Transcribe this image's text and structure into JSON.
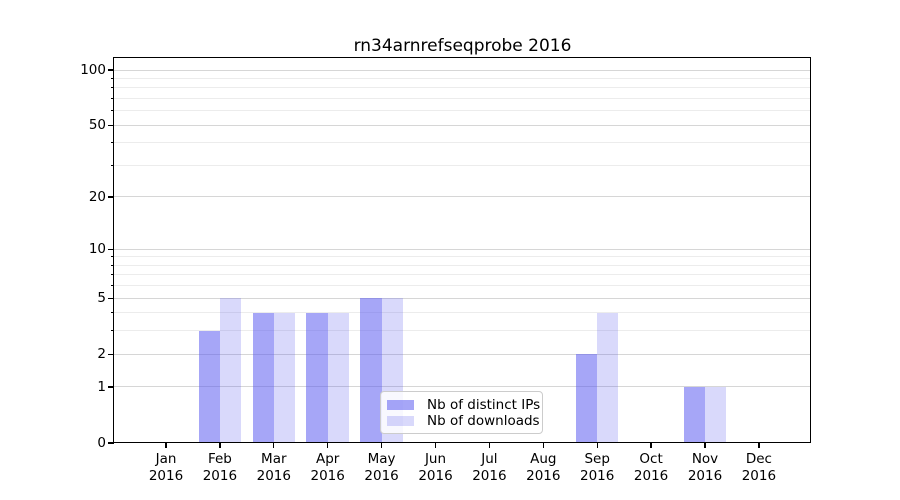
{
  "title": "rn34arnrefseqprobe 2016",
  "chart_data": {
    "type": "bar",
    "title": "rn34arnrefseqprobe 2016",
    "categories": [
      "Jan",
      "Feb",
      "Mar",
      "Apr",
      "May",
      "Jun",
      "Jul",
      "Aug",
      "Sep",
      "Oct",
      "Nov",
      "Dec"
    ],
    "year": "2016",
    "series": [
      {
        "name": "Nb of distinct IPs",
        "color": "#5c5cf0",
        "alpha": 0.55,
        "rendered_color": "#a6a6f3",
        "values": [
          0,
          3,
          4,
          4,
          5,
          0,
          0,
          0,
          2,
          0,
          1,
          0
        ]
      },
      {
        "name": "Nb of downloads",
        "color": "#5c5cf0",
        "alpha": 0.235,
        "rendered_color": "#d9d9f8",
        "values": [
          0,
          5,
          4,
          4,
          5,
          0,
          0,
          0,
          4,
          0,
          1,
          0
        ]
      }
    ],
    "yscale": "log1p",
    "yticks": [
      0,
      1,
      2,
      5,
      10,
      20,
      50,
      100
    ],
    "minor_yticks": [
      3,
      4,
      6,
      7,
      8,
      9,
      30,
      40,
      60,
      70,
      80,
      90
    ],
    "ylim": [
      0,
      116
    ],
    "xlabel": "",
    "ylabel": "",
    "grid": "horizontal",
    "legend_position": "lower-center",
    "axis_color": "#000000",
    "major_grid_color": "#d6d6d6",
    "minor_grid_color": "#ececec"
  }
}
